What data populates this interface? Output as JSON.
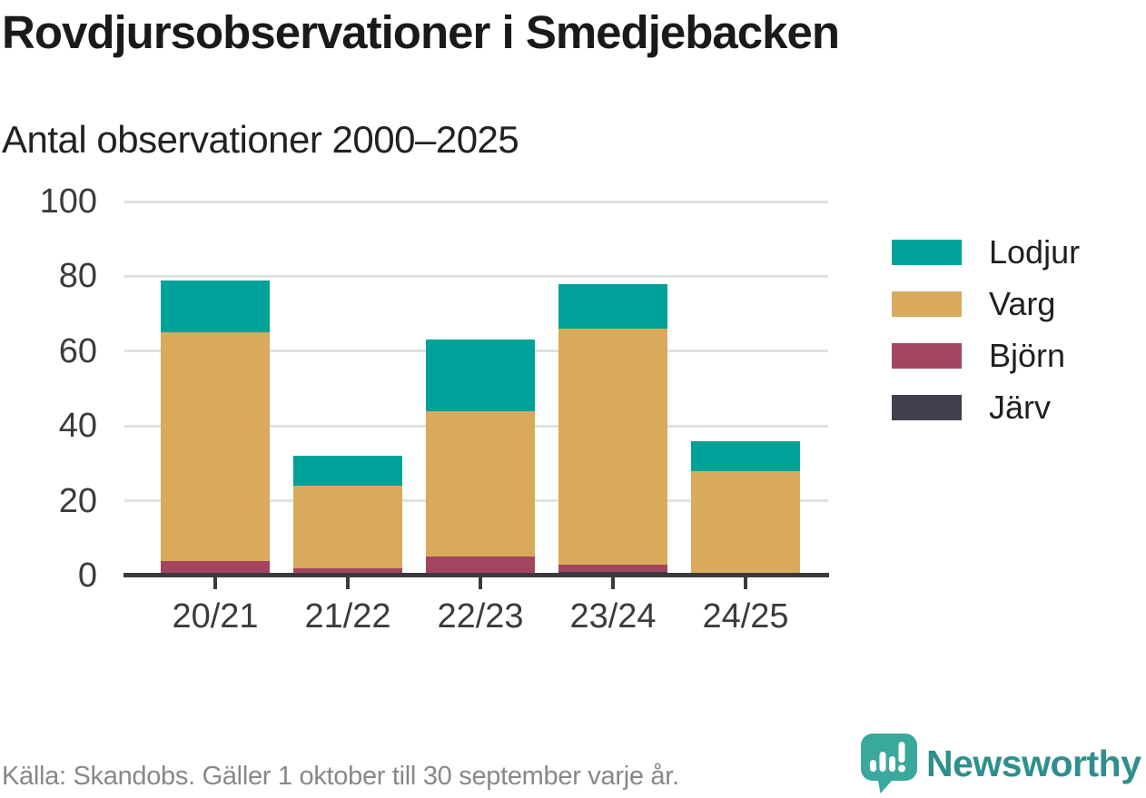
{
  "header": {
    "title": "Rovdjursobservationer i Smedjebacken",
    "subtitle": "Antal observationer 2000–2025"
  },
  "chart_data": {
    "type": "bar",
    "stacked": true,
    "title": "Rovdjursobservationer i Smedjebacken",
    "subtitle": "Antal observationer 2000–2025",
    "categories": [
      "20/21",
      "21/22",
      "22/23",
      "23/24",
      "24/25"
    ],
    "series": [
      {
        "name": "Järv",
        "color": "#433f4d",
        "values": [
          0,
          0,
          0,
          1,
          0
        ]
      },
      {
        "name": "Björn",
        "color": "#a4455f",
        "values": [
          4,
          2,
          5,
          2,
          0
        ]
      },
      {
        "name": "Varg",
        "color": "#d9aa5c",
        "values": [
          61,
          22,
          39,
          63,
          28
        ]
      },
      {
        "name": "Lodjur",
        "color": "#00a198",
        "values": [
          14,
          8,
          19,
          12,
          8
        ]
      }
    ],
    "totals": [
      79,
      32,
      63,
      78,
      36
    ],
    "ylim": [
      0,
      100
    ],
    "yticks": [
      0,
      20,
      40,
      60,
      80,
      100
    ],
    "grid": true,
    "legend_position": "right",
    "legend_order_top_to_bottom": [
      "Lodjur",
      "Varg",
      "Björn",
      "Järv"
    ]
  },
  "footer": {
    "source": "Källa: Skandobs. Gäller 1 oktober till 30 september varje år.",
    "brand": "Newsworthy"
  },
  "colors": {
    "accent_teal": "#00a198",
    "tan": "#d9aa5c",
    "maroon": "#a4455f",
    "dark_slate": "#433f4d",
    "grid": "#e1e1e1",
    "axis": "#3a393e",
    "logo_teal": "#3aa89c",
    "brand_text_teal": "#2e8f8c",
    "source_gray": "#888888"
  }
}
